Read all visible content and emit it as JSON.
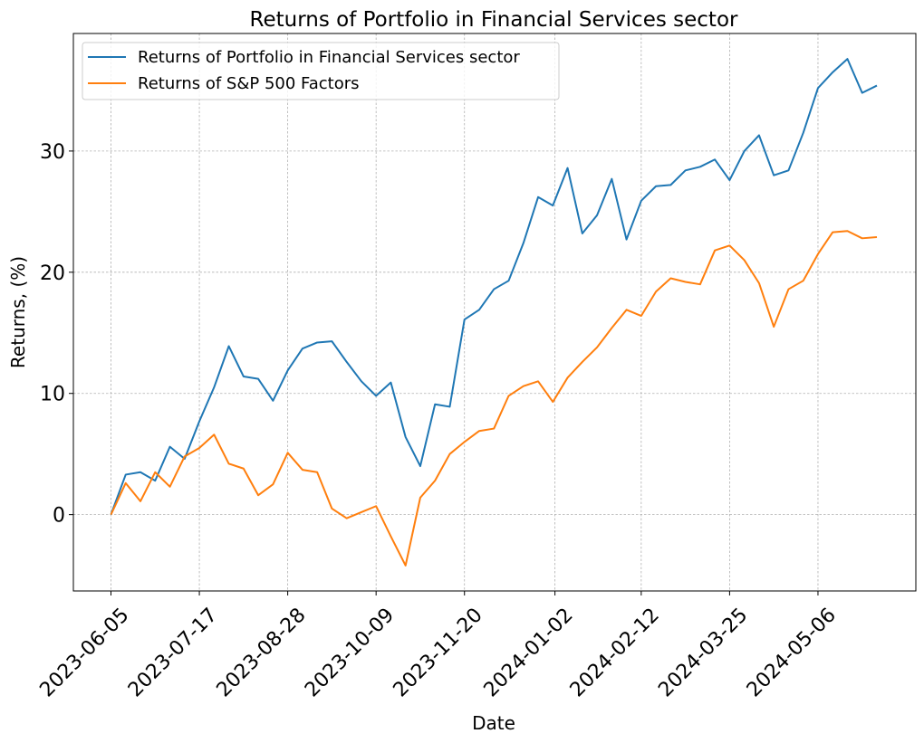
{
  "chart_data": {
    "type": "line",
    "title": "Returns of Portfolio in Financial Services sector",
    "xlabel": "Date",
    "ylabel": "Returns, (%)",
    "ylim": [
      -6.3,
      39.7
    ],
    "yticks": [
      0,
      10,
      20,
      30
    ],
    "xticks": [
      "2023-06-05",
      "2023-07-17",
      "2023-08-28",
      "2023-10-09",
      "2023-11-20",
      "2024-01-02",
      "2024-02-12",
      "2024-03-25",
      "2024-05-06"
    ],
    "x_start": "2023-06-05",
    "x_step_days": 7,
    "grid": true,
    "legend_position": "upper-left",
    "series": [
      {
        "name": "Returns of Portfolio in Financial Services sector",
        "color": "#1f77b4",
        "values": [
          0.0,
          3.3,
          3.5,
          2.8,
          5.6,
          4.6,
          7.7,
          10.5,
          13.9,
          11.4,
          11.2,
          9.4,
          11.9,
          13.7,
          14.2,
          14.3,
          12.6,
          11.0,
          9.8,
          10.9,
          6.4,
          4.0,
          9.1,
          8.9,
          16.1,
          16.9,
          18.6,
          19.3,
          22.4,
          26.2,
          25.5,
          28.6,
          23.2,
          24.7,
          27.7,
          22.7,
          25.9,
          27.1,
          27.2,
          28.4,
          28.7,
          29.3,
          27.6,
          30.0,
          31.3,
          28.0,
          28.4,
          31.5,
          35.2,
          36.5,
          37.6,
          34.8,
          35.4
        ]
      },
      {
        "name": "Returns of S&P 500 Factors",
        "color": "#ff7f0e",
        "values": [
          0.0,
          2.6,
          1.1,
          3.5,
          2.3,
          4.8,
          5.5,
          6.6,
          4.2,
          3.8,
          1.6,
          2.5,
          5.1,
          3.7,
          3.5,
          0.5,
          -0.3,
          0.2,
          0.7,
          -1.8,
          -4.2,
          1.4,
          2.8,
          5.0,
          6.0,
          6.9,
          7.1,
          9.8,
          10.6,
          11.0,
          9.3,
          11.3,
          12.6,
          13.8,
          15.4,
          16.9,
          16.4,
          18.4,
          19.5,
          19.2,
          19.0,
          21.8,
          22.2,
          21.0,
          19.1,
          15.5,
          18.6,
          19.3,
          21.5,
          23.3,
          23.4,
          22.8,
          22.9
        ]
      }
    ]
  }
}
